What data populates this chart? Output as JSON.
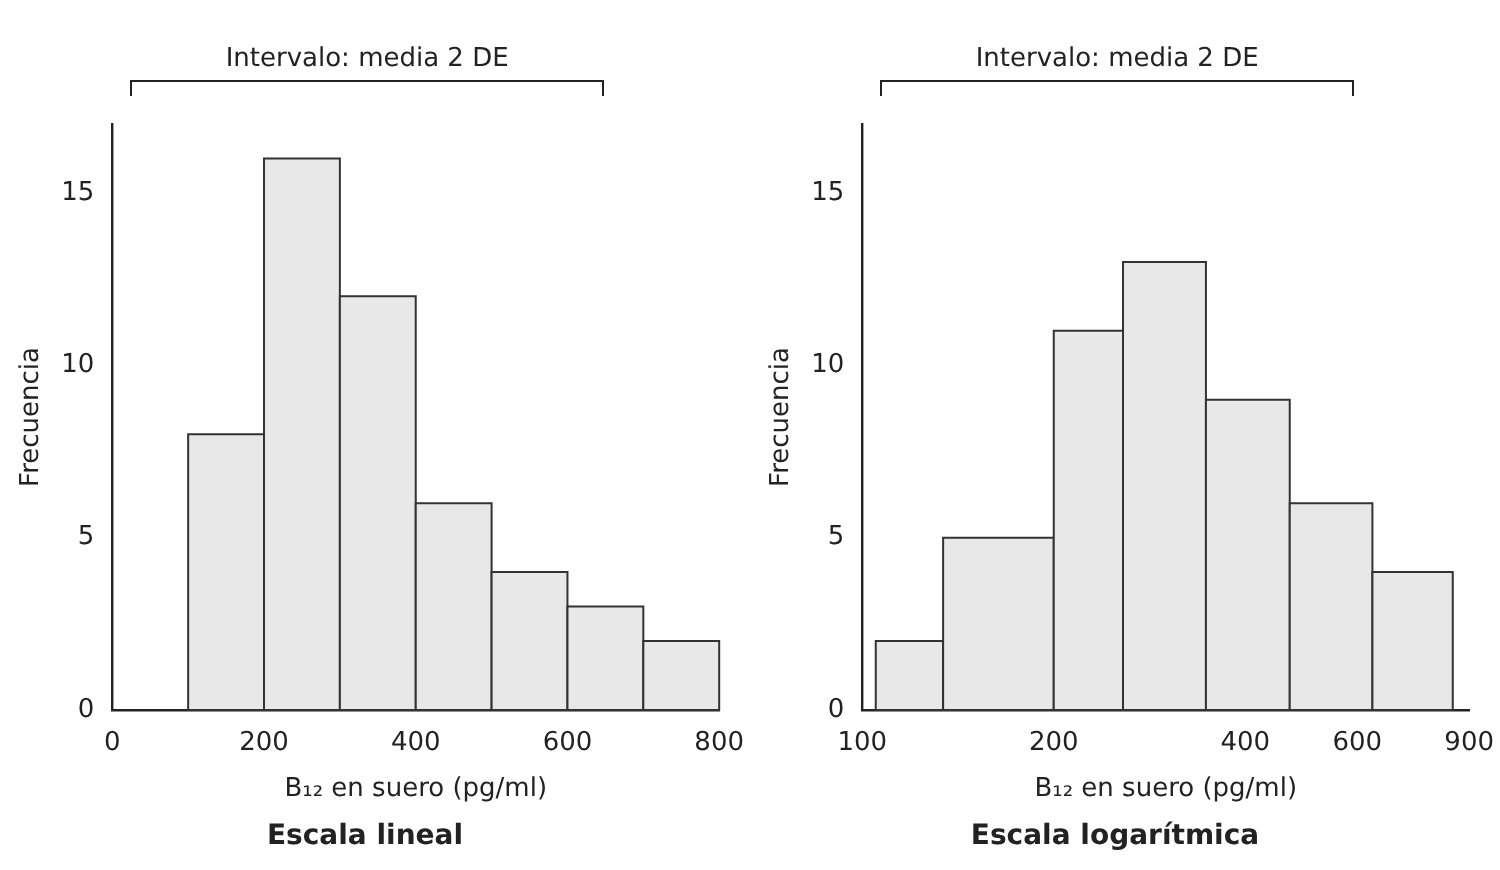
{
  "chart_data": [
    {
      "type": "histogram",
      "title": "Escala lineal",
      "xlabel": "B₁₂ en suero (pg/ml)",
      "ylabel": "Frecuencia",
      "bins": [
        100,
        200,
        300,
        400,
        500,
        600,
        700,
        800
      ],
      "values": [
        8,
        16,
        12,
        6,
        4,
        3,
        2
      ],
      "color": "#e8e8e8",
      "xlim": [
        0,
        800
      ],
      "xticks": [
        0,
        200,
        400,
        600,
        800
      ],
      "ylim": [
        0,
        17
      ],
      "yticks": [
        0,
        5,
        10,
        15
      ],
      "annotations": [
        "Intervalo: media 2 DE"
      ]
    },
    {
      "type": "histogram",
      "title": "Escala logarítmica",
      "xlabel": "B₁₂ en suero (pg/ml)",
      "ylabel": "Frecuencia",
      "bins": [
        105,
        134,
        200,
        257,
        347,
        470,
        634,
        848
      ],
      "values": [
        2,
        5,
        11,
        13,
        9,
        6,
        4
      ],
      "color": "#e8e8e8",
      "log": "x",
      "xlim": [
        100,
        900
      ],
      "xticks": [
        100,
        200,
        400,
        600,
        900
      ],
      "ylim": [
        0,
        17
      ],
      "yticks": [
        0,
        5,
        10,
        15
      ],
      "annotations": [
        "Intervalo: media 2 DE"
      ]
    }
  ]
}
